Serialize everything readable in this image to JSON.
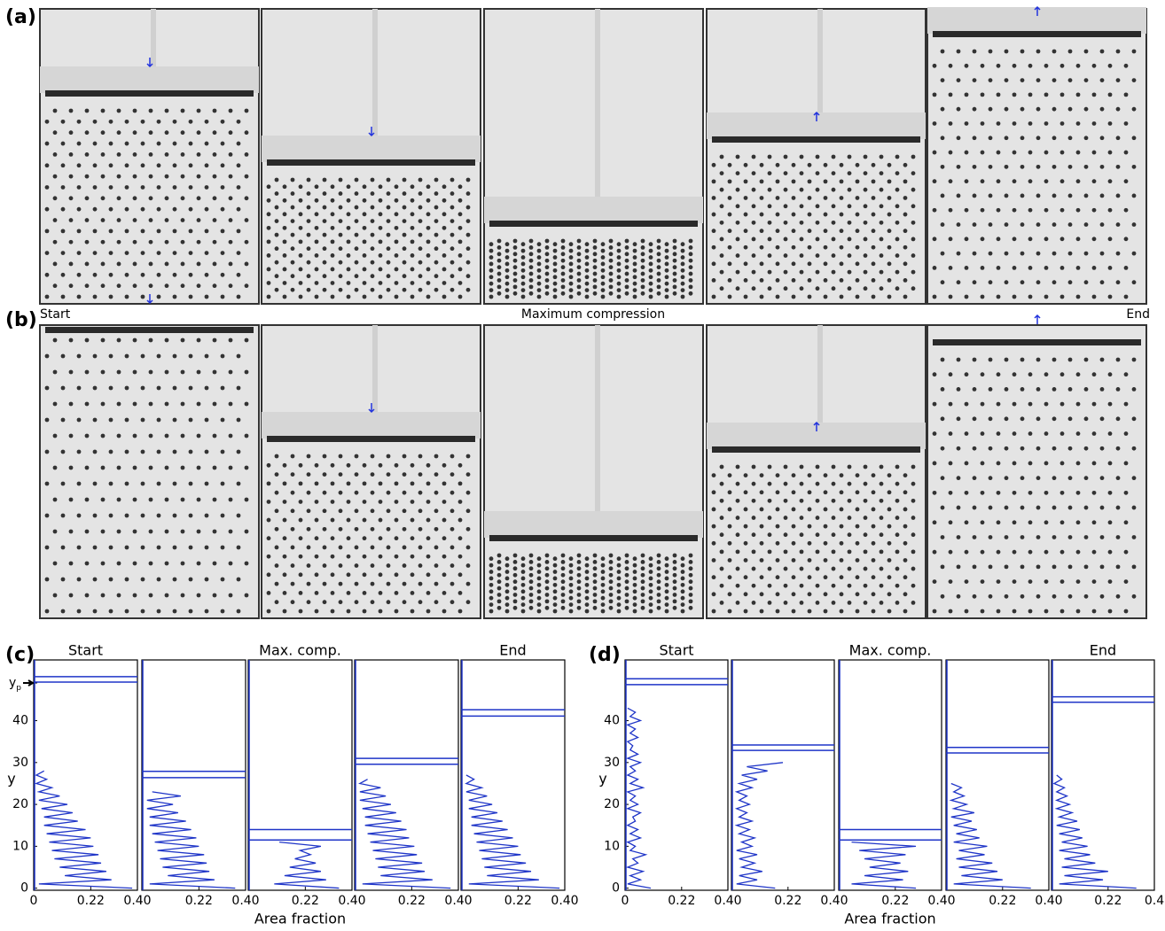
{
  "figure": {
    "panel_labels": [
      "(a)",
      "(b)",
      "(c)",
      "(d)"
    ],
    "row_labels": [
      "Start",
      "Maximum compression",
      "End"
    ]
  },
  "chart_data": [
    {
      "type": "line",
      "title": "Start",
      "ylabel": "y",
      "xlim": [
        0,
        0.4
      ],
      "xticks": [
        0,
        0.22,
        {
          "value": 0.4,
          "label": "0.40"
        }
      ],
      "ylim": [
        -0.5,
        54.5
      ],
      "yticks": [
        0,
        10,
        20,
        30,
        40,
        {
          "value": 49,
          "label": "yp"
        }
      ],
      "plate": [
        50.5,
        49.2
      ],
      "color": "#1f35c8",
      "y": [
        0,
        1,
        2,
        3,
        4,
        5,
        6,
        7,
        8,
        9,
        10,
        11,
        12,
        13,
        14,
        15,
        16,
        17,
        18,
        19,
        20,
        21,
        22,
        23,
        24,
        25,
        26,
        27,
        28
      ],
      "values": [
        0.38,
        0.02,
        0.3,
        0.12,
        0.28,
        0.1,
        0.26,
        0.08,
        0.25,
        0.07,
        0.23,
        0.06,
        0.22,
        0.05,
        0.2,
        0.04,
        0.17,
        0.04,
        0.15,
        0.03,
        0.13,
        0.02,
        0.1,
        0.02,
        0.07,
        0.01,
        0.05,
        0.01,
        0.04
      ]
    },
    {
      "type": "line",
      "xlim": [
        0,
        0.4
      ],
      "xticks": [
        0.22,
        {
          "value": 0.4,
          "label": "0.40"
        }
      ],
      "ylim": [
        -0.5,
        54.5
      ],
      "plate": [
        27.9,
        26.4
      ],
      "color": "#1f35c8",
      "y": [
        0,
        1,
        2,
        3,
        4,
        5,
        6,
        7,
        8,
        9,
        10,
        11,
        12,
        13,
        14,
        15,
        16,
        17,
        18,
        19,
        20,
        21,
        22,
        23
      ],
      "values": [
        0.36,
        0.03,
        0.28,
        0.1,
        0.26,
        0.08,
        0.25,
        0.07,
        0.24,
        0.06,
        0.22,
        0.05,
        0.21,
        0.04,
        0.19,
        0.03,
        0.17,
        0.03,
        0.14,
        0.02,
        0.12,
        0.02,
        0.15,
        0.04
      ]
    },
    {
      "type": "line",
      "title": "Max. comp.",
      "xlabel": "Area fraction",
      "xlim": [
        0,
        0.4
      ],
      "xticks": [
        0.22,
        {
          "value": 0.4,
          "label": "0.40"
        }
      ],
      "ylim": [
        -0.5,
        54.5
      ],
      "plate": [
        14,
        11.5
      ],
      "color": "#1f35c8",
      "y": [
        0,
        1,
        2,
        3,
        4,
        5,
        6,
        7,
        8,
        9,
        10,
        11
      ],
      "values": [
        0.35,
        0.1,
        0.3,
        0.14,
        0.28,
        0.16,
        0.26,
        0.18,
        0.24,
        0.2,
        0.28,
        0.12
      ]
    },
    {
      "type": "line",
      "xlim": [
        0,
        0.4
      ],
      "xticks": [
        0.22,
        {
          "value": 0.4,
          "label": "0.40"
        }
      ],
      "ylim": [
        -0.5,
        54.5
      ],
      "plate": [
        31,
        29.6
      ],
      "color": "#1f35c8",
      "y": [
        0,
        1,
        2,
        3,
        4,
        5,
        6,
        7,
        8,
        9,
        10,
        11,
        12,
        13,
        14,
        15,
        16,
        17,
        18,
        19,
        20,
        21,
        22,
        23,
        24,
        25,
        26
      ],
      "values": [
        0.37,
        0.03,
        0.3,
        0.1,
        0.27,
        0.09,
        0.26,
        0.08,
        0.24,
        0.07,
        0.23,
        0.06,
        0.21,
        0.05,
        0.2,
        0.04,
        0.18,
        0.04,
        0.16,
        0.03,
        0.14,
        0.02,
        0.12,
        0.02,
        0.1,
        0.02,
        0.05
      ]
    },
    {
      "type": "line",
      "title": "End",
      "xlim": [
        0,
        0.4
      ],
      "xticks": [
        0.22,
        {
          "value": 0.4,
          "label": "0.40"
        }
      ],
      "ylim": [
        -0.5,
        54.5
      ],
      "plate": [
        42.6,
        41.1
      ],
      "color": "#1f35c8",
      "y": [
        0,
        1,
        2,
        3,
        4,
        5,
        6,
        7,
        8,
        9,
        10,
        11,
        12,
        13,
        14,
        15,
        16,
        17,
        18,
        19,
        20,
        21,
        22,
        23,
        24,
        25,
        26,
        27
      ],
      "values": [
        0.38,
        0.03,
        0.3,
        0.1,
        0.27,
        0.09,
        0.25,
        0.08,
        0.23,
        0.07,
        0.22,
        0.06,
        0.2,
        0.05,
        0.18,
        0.04,
        0.16,
        0.04,
        0.14,
        0.03,
        0.12,
        0.03,
        0.1,
        0.02,
        0.08,
        0.02,
        0.05,
        0.02
      ]
    },
    {
      "type": "line",
      "title": "Start",
      "ylabel": "y",
      "xlim": [
        0,
        0.4
      ],
      "xticks": [
        0,
        0.22,
        {
          "value": 0.4,
          "label": "0.40"
        }
      ],
      "ylim": [
        -0.5,
        54.5
      ],
      "yticks": [
        0,
        10,
        20,
        30,
        40
      ],
      "plate": [
        50,
        48.6
      ],
      "color": "#1f35c8",
      "y": [
        0,
        1,
        2,
        3,
        4,
        5,
        6,
        7,
        8,
        9,
        10,
        11,
        12,
        13,
        14,
        15,
        16,
        17,
        18,
        19,
        20,
        21,
        22,
        23,
        24,
        25,
        26,
        27,
        28,
        29,
        30,
        31,
        32,
        33,
        34,
        35,
        36,
        37,
        38,
        39,
        40,
        41,
        42,
        43
      ],
      "values": [
        0.1,
        0.01,
        0.06,
        0.02,
        0.07,
        0.01,
        0.05,
        0.03,
        0.08,
        0.02,
        0.04,
        0.01,
        0.06,
        0.02,
        0.05,
        0.01,
        0.04,
        0.03,
        0.06,
        0.01,
        0.05,
        0.02,
        0.04,
        0.01,
        0.07,
        0.02,
        0.05,
        0.01,
        0.04,
        0.02,
        0.06,
        0.01,
        0.05,
        0.02,
        0.03,
        0.01,
        0.05,
        0.02,
        0.04,
        0.01,
        0.06,
        0.02,
        0.04,
        0.01
      ]
    },
    {
      "type": "line",
      "xlim": [
        0,
        0.4
      ],
      "xticks": [
        0.22,
        {
          "value": 0.4,
          "label": "0.40"
        }
      ],
      "ylim": [
        -0.5,
        54.5
      ],
      "plate": [
        34.2,
        32.9
      ],
      "color": "#1f35c8",
      "y": [
        0,
        1,
        2,
        3,
        4,
        5,
        6,
        7,
        8,
        9,
        10,
        11,
        12,
        13,
        14,
        15,
        16,
        17,
        18,
        19,
        20,
        21,
        22,
        23,
        24,
        25,
        26,
        27,
        28,
        29,
        30
      ],
      "values": [
        0.17,
        0.02,
        0.1,
        0.03,
        0.12,
        0.04,
        0.09,
        0.03,
        0.1,
        0.02,
        0.08,
        0.04,
        0.09,
        0.03,
        0.07,
        0.02,
        0.08,
        0.03,
        0.06,
        0.02,
        0.07,
        0.03,
        0.06,
        0.02,
        0.08,
        0.03,
        0.1,
        0.04,
        0.14,
        0.06,
        0.2
      ]
    },
    {
      "type": "line",
      "title": "Max. comp.",
      "xlabel": "Area fraction",
      "xlim": [
        0,
        0.4
      ],
      "xticks": [
        0.22,
        {
          "value": 0.4,
          "label": "0.40"
        }
      ],
      "ylim": [
        -0.5,
        54.5
      ],
      "plate": [
        14,
        11.5
      ],
      "color": "#1f35c8",
      "y": [
        0,
        1,
        2,
        3,
        4,
        5,
        6,
        7,
        8,
        9,
        10,
        11
      ],
      "values": [
        0.3,
        0.05,
        0.25,
        0.1,
        0.27,
        0.12,
        0.24,
        0.1,
        0.26,
        0.08,
        0.3,
        0.05
      ]
    },
    {
      "type": "line",
      "xlim": [
        0,
        0.4
      ],
      "xticks": [
        0.22,
        {
          "value": 0.4,
          "label": "0.40"
        }
      ],
      "ylim": [
        -0.5,
        54.5
      ],
      "plate": [
        33.6,
        32.3
      ],
      "color": "#1f35c8",
      "y": [
        0,
        1,
        2,
        3,
        4,
        5,
        6,
        7,
        8,
        9,
        10,
        11,
        12,
        13,
        14,
        15,
        16,
        17,
        18,
        19,
        20,
        21,
        22,
        23,
        24,
        25
      ],
      "values": [
        0.33,
        0.03,
        0.22,
        0.06,
        0.2,
        0.05,
        0.18,
        0.04,
        0.15,
        0.05,
        0.16,
        0.03,
        0.13,
        0.04,
        0.12,
        0.03,
        0.1,
        0.02,
        0.11,
        0.03,
        0.08,
        0.02,
        0.07,
        0.03,
        0.06,
        0.02
      ]
    },
    {
      "type": "line",
      "title": "End",
      "xlim": [
        0,
        0.4
      ],
      "xticks": [
        0.22,
        {
          "value": 0.4,
          "label": "0.4"
        }
      ],
      "ylim": [
        -0.5,
        54.5
      ],
      "plate": [
        45.7,
        44.4
      ],
      "color": "#1f35c8",
      "y": [
        0,
        1,
        2,
        3,
        4,
        5,
        6,
        7,
        8,
        9,
        10,
        11,
        12,
        13,
        14,
        15,
        16,
        17,
        18,
        19,
        20,
        21,
        22,
        23,
        24,
        25,
        26,
        27
      ],
      "values": [
        0.33,
        0.03,
        0.2,
        0.05,
        0.22,
        0.04,
        0.17,
        0.05,
        0.15,
        0.03,
        0.14,
        0.04,
        0.12,
        0.03,
        0.11,
        0.02,
        0.1,
        0.03,
        0.08,
        0.02,
        0.07,
        0.02,
        0.06,
        0.02,
        0.05,
        0.01,
        0.04,
        0.02
      ]
    }
  ]
}
